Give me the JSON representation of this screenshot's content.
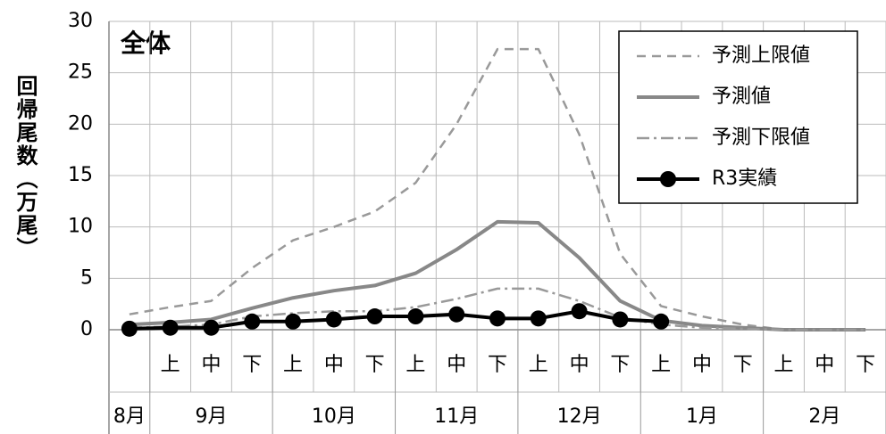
{
  "chart_data": {
    "type": "line",
    "title": "全体",
    "y_label": "回帰尾数（万尾）",
    "categories": [
      null,
      "上",
      "中",
      "下",
      "上",
      "中",
      "下",
      "上",
      "中",
      "下",
      "上",
      "中",
      "下",
      "上",
      "中",
      "下",
      "上",
      "中",
      "下"
    ],
    "groups": [
      {
        "label": "8月",
        "span": 1
      },
      {
        "label": "9月",
        "span": 3
      },
      {
        "label": "10月",
        "span": 3
      },
      {
        "label": "11月",
        "span": 3
      },
      {
        "label": "12月",
        "span": 3
      },
      {
        "label": "1月",
        "span": 3
      },
      {
        "label": "2月",
        "span": 3
      }
    ],
    "ylim": [
      0,
      30
    ],
    "yticks": [
      0,
      5,
      10,
      15,
      20,
      25,
      30
    ],
    "grid": true,
    "legend": "top-right",
    "series": [
      {
        "name": "予測上限値",
        "color": "#999999",
        "style": "dashed",
        "values": [
          1.5,
          2.2,
          2.8,
          6,
          8.7,
          10,
          11.5,
          14.3,
          20,
          27.3,
          27.3,
          19,
          7.4,
          2.3,
          1.3,
          0.5,
          0,
          0,
          0
        ]
      },
      {
        "name": "予測値",
        "color": "#888888",
        "style": "solid",
        "values": [
          0.5,
          0.7,
          1,
          2.1,
          3.1,
          3.8,
          4.3,
          5.5,
          7.8,
          10.5,
          10.4,
          7,
          2.8,
          0.9,
          0.4,
          0.2,
          0,
          0,
          0
        ]
      },
      {
        "name": "予測下限値",
        "color": "#999999",
        "style": "dashdot",
        "values": [
          0.2,
          0.3,
          0.5,
          1.3,
          1.6,
          1.8,
          1.8,
          2.2,
          3,
          4,
          4,
          2.8,
          1.2,
          0.5,
          0.2,
          0.1,
          0,
          0,
          0
        ]
      },
      {
        "name": "R3実績",
        "color": "#000000",
        "style": "marker",
        "values": [
          0.1,
          0.2,
          0.2,
          0.8,
          0.8,
          1,
          1.3,
          1.3,
          1.5,
          1.1,
          1.1,
          1.8,
          1,
          0.8,
          null,
          null,
          null,
          null,
          null
        ]
      }
    ]
  }
}
